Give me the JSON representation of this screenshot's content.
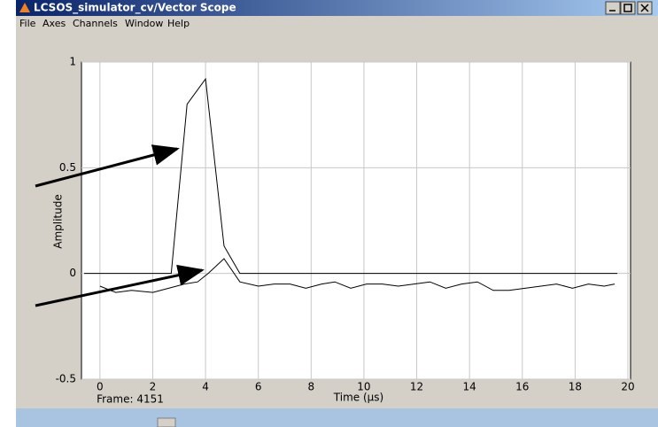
{
  "window": {
    "title": "LCSOS_simulator_cv/Vector Scope",
    "menu": [
      "File",
      "Axes",
      "Channels",
      "Window",
      "Help"
    ],
    "status": "Frame: 4151"
  },
  "chart_data": {
    "type": "line",
    "xlabel": "Time (µs)",
    "ylabel": "Amplitude",
    "xlim": [
      -0.7,
      20.1
    ],
    "ylim": [
      -0.5,
      1
    ],
    "xticks": [
      0,
      2,
      4,
      6,
      8,
      10,
      12,
      14,
      16,
      18,
      20
    ],
    "yticks": [
      {
        "value": -0.5,
        "label": "-0.5"
      },
      0,
      0.5,
      1
    ],
    "grid": true,
    "series": [
      {
        "color": "#000000",
        "x": [
          -0.6,
          2.7,
          3.3,
          4.0,
          4.7,
          5.3,
          19.6
        ],
        "values": [
          0,
          0,
          0.8,
          0.92,
          0.13,
          0,
          0
        ]
      },
      {
        "color": "#000000",
        "x": [
          0,
          0.6,
          1.2,
          2.0,
          2.6,
          3.2,
          3.7,
          4.1,
          4.7,
          5.3,
          6.0,
          6.6,
          7.2,
          7.8,
          8.4,
          8.9,
          9.5,
          10.1,
          10.7,
          11.3,
          11.9,
          12.5,
          13.1,
          13.7,
          14.3,
          14.9,
          15.5,
          16.1,
          16.7,
          17.3,
          17.9,
          18.5,
          19.1,
          19.5
        ],
        "values": [
          -0.06,
          -0.09,
          -0.08,
          -0.09,
          -0.07,
          -0.05,
          -0.04,
          0.0,
          0.07,
          -0.04,
          -0.06,
          -0.05,
          -0.05,
          -0.07,
          -0.05,
          -0.04,
          -0.07,
          -0.05,
          -0.05,
          -0.06,
          -0.05,
          -0.04,
          -0.07,
          -0.05,
          -0.04,
          -0.08,
          -0.08,
          -0.07,
          -0.06,
          -0.05,
          -0.07,
          -0.05,
          -0.06,
          -0.05
        ]
      }
    ]
  }
}
